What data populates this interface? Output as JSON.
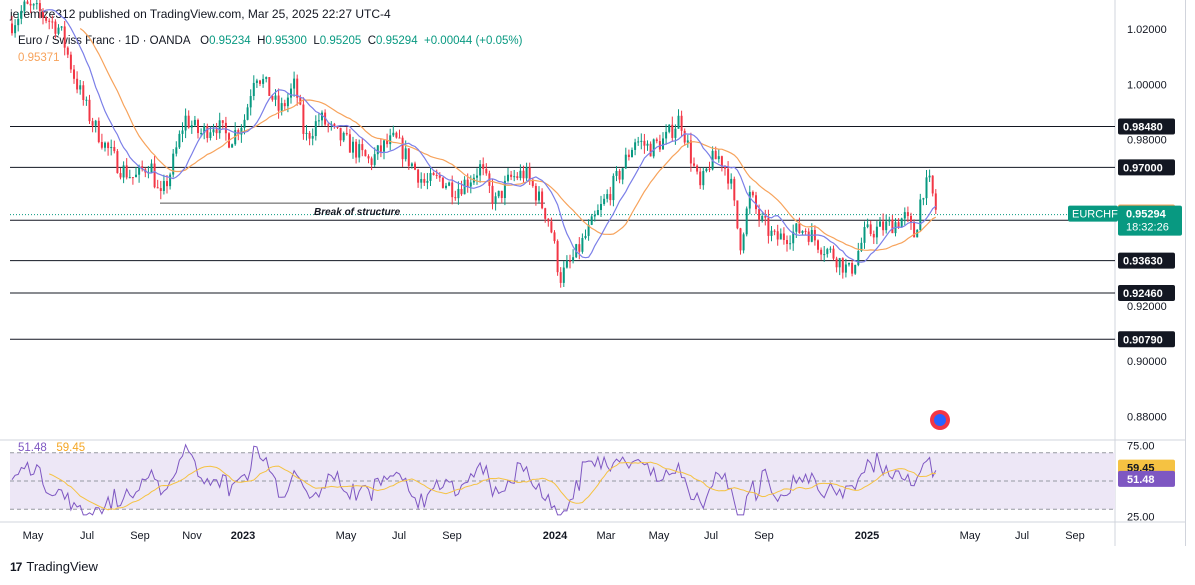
{
  "header": {
    "publisher_line": "jeremize312 published on TradingView.com, Mar 25, 2025 22:27 UTC-4"
  },
  "legend": {
    "symbol": "Euro / Swiss Franc · 1D · OANDA",
    "o_label": "O",
    "o_value": "0.95234",
    "h_label": "H",
    "h_value": "0.95300",
    "l_label": "L",
    "l_value": "0.95205",
    "c_label": "C",
    "c_value": "0.95294",
    "change": "+0.00044 (+0.05%)",
    "ma_label": "0.95371"
  },
  "rsi_legend": {
    "rsi": "51.48",
    "ma": "59.45"
  },
  "footer": {
    "brand": "TradingView"
  },
  "colors": {
    "up": "#089981",
    "down": "#f23645",
    "ma_orange": "#f7a35c",
    "ma_blue": "#7b7fe8",
    "rsi_line": "#7e57c2",
    "rsi_ma": "#f5c242",
    "rsi_bg": "#ede7f6",
    "text": "#131722"
  },
  "chart_data": [
    {
      "type": "candlestick",
      "symbol": "EURCHF",
      "x_ticks": [
        "May",
        "Jul",
        "Sep",
        "Nov",
        "2023",
        "May",
        "Jul",
        "Sep",
        "2024",
        "Mar",
        "May",
        "Jul",
        "Sep",
        "2025",
        "May",
        "Jul",
        "Sep"
      ],
      "y_ticks": [
        "1.02000",
        "1.00000",
        "0.98000",
        "0.92000",
        "0.90000",
        "0.88000"
      ],
      "ylim": [
        0.8715,
        1.0305
      ],
      "close_path": [
        [
          0,
          1.01
        ],
        [
          12,
          1.022
        ],
        [
          25,
          1.028
        ],
        [
          40,
          1.026
        ],
        [
          60,
          1.02
        ],
        [
          75,
          1.002
        ],
        [
          90,
          0.988
        ],
        [
          105,
          0.978
        ],
        [
          120,
          0.97
        ],
        [
          135,
          0.966
        ],
        [
          150,
          0.972
        ],
        [
          160,
          0.958
        ],
        [
          170,
          0.968
        ],
        [
          185,
          0.988
        ],
        [
          200,
          0.982
        ],
        [
          215,
          0.986
        ],
        [
          230,
          0.98
        ],
        [
          245,
          0.988
        ],
        [
          255,
          1.005
        ],
        [
          265,
          1.0
        ],
        [
          280,
          0.99
        ],
        [
          295,
          1.0
        ],
        [
          305,
          0.98
        ],
        [
          320,
          0.988
        ],
        [
          335,
          0.982
        ],
        [
          350,
          0.978
        ],
        [
          370,
          0.972
        ],
        [
          385,
          0.978
        ],
        [
          395,
          0.98
        ],
        [
          410,
          0.972
        ],
        [
          425,
          0.964
        ],
        [
          440,
          0.966
        ],
        [
          455,
          0.962
        ],
        [
          470,
          0.966
        ],
        [
          480,
          0.97
        ],
        [
          495,
          0.957
        ],
        [
          510,
          0.966
        ],
        [
          525,
          0.968
        ],
        [
          540,
          0.958
        ],
        [
          550,
          0.95
        ],
        [
          560,
          0.93
        ],
        [
          575,
          0.938
        ],
        [
          590,
          0.948
        ],
        [
          605,
          0.958
        ],
        [
          620,
          0.968
        ],
        [
          635,
          0.98
        ],
        [
          650,
          0.977
        ],
        [
          665,
          0.98
        ],
        [
          680,
          0.988
        ],
        [
          690,
          0.975
        ],
        [
          700,
          0.962
        ],
        [
          710,
          0.972
        ],
        [
          720,
          0.974
        ],
        [
          730,
          0.966
        ],
        [
          740,
          0.942
        ],
        [
          750,
          0.96
        ],
        [
          760,
          0.951
        ],
        [
          775,
          0.944
        ],
        [
          790,
          0.946
        ],
        [
          805,
          0.948
        ],
        [
          820,
          0.942
        ],
        [
          835,
          0.938
        ],
        [
          850,
          0.932
        ],
        [
          865,
          0.946
        ],
        [
          880,
          0.948
        ],
        [
          895,
          0.95
        ],
        [
          905,
          0.952
        ],
        [
          915,
          0.945
        ],
        [
          922,
          0.962
        ],
        [
          930,
          0.964
        ],
        [
          937,
          0.953
        ]
      ],
      "horizontal_levels": [
        {
          "label": "0.98480",
          "value": 0.9848
        },
        {
          "label": "0.97000",
          "value": 0.97
        },
        {
          "label": "0.95090",
          "value": 0.9509
        },
        {
          "label": "0.93630",
          "value": 0.9363
        },
        {
          "label": "0.92460",
          "value": 0.9246
        },
        {
          "label": "0.90790",
          "value": 0.9079
        }
      ],
      "ma_value_label": "0.95371",
      "price_label": "0.95294",
      "symbol_label": "EURCHF",
      "countdown": "18:32:26",
      "annotations": [
        {
          "text": "Break of structure",
          "y": 0.9571
        }
      ]
    },
    {
      "type": "line",
      "name": "RSI",
      "y_ticks": [
        "75.00",
        "25.00"
      ],
      "ylim": [
        21,
        79
      ],
      "levels": [
        70,
        50,
        30
      ],
      "rsi_value": "51.48",
      "ma_value": "59.45"
    }
  ]
}
